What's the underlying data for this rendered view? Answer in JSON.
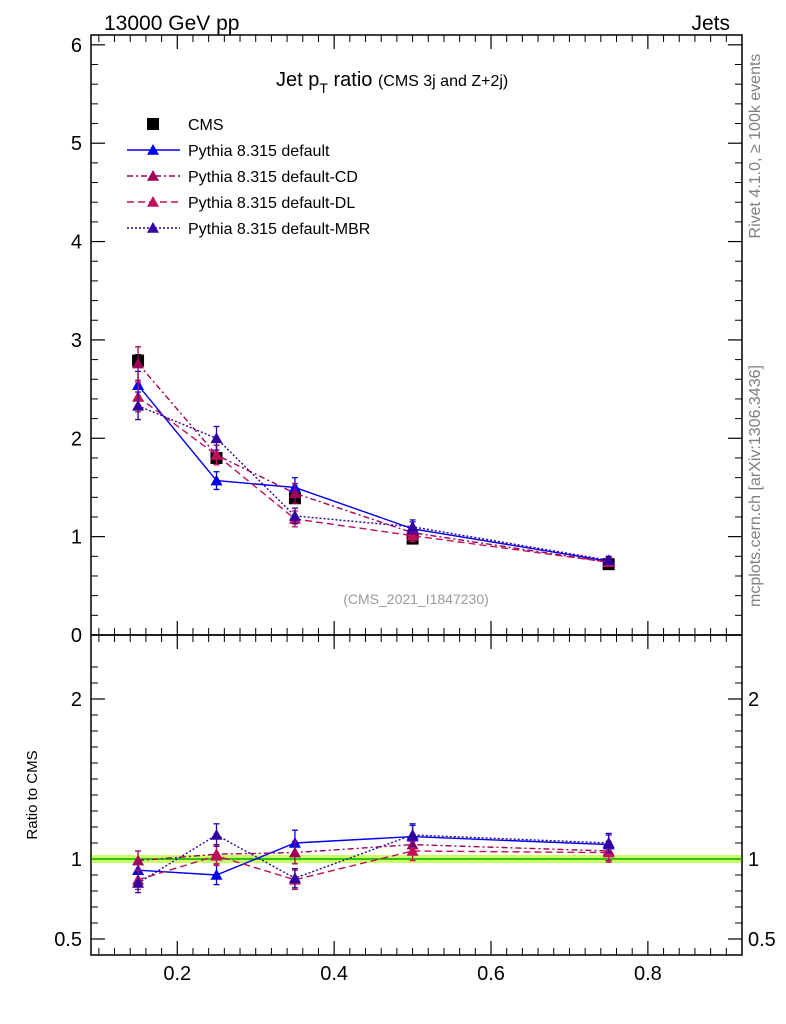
{
  "header": {
    "left": "13000 GeV pp",
    "right": "Jets"
  },
  "plot_title": {
    "main": "Jet p",
    "sub": "T",
    "rest": " ratio ",
    "small": "(CMS 3j and Z+2j)"
  },
  "side_notes": {
    "rivet": "Rivet 4.1.0, ≥ 100k events",
    "mcplots": "mcplots.cern.ch [arXiv:1306.3436]"
  },
  "analysis_ref": "(CMS_2021_I1847230)",
  "ratio_ylabel": "Ratio to CMS",
  "colors": {
    "data": "#000000",
    "default": "#0000ee",
    "cd": "#a0005a",
    "dl": "#c0105a",
    "mbr": "#3000a0",
    "band": "#ccff66",
    "refline": "#00aa00"
  },
  "chart_data": {
    "type": "line",
    "title": "Jet pT ratio (CMS 3j and Z+2j)",
    "xlabel": "",
    "ylabel": "",
    "x": [
      0.15,
      0.25,
      0.35,
      0.5,
      0.75
    ],
    "xlim": [
      0.09,
      0.92
    ],
    "ylim": [
      0,
      6.1
    ],
    "x_ticks": [
      "0.2",
      "0.4",
      "0.6",
      "0.8"
    ],
    "x_tick_values": [
      0.2,
      0.4,
      0.6,
      0.8
    ],
    "y_ticks": [
      "0",
      "1",
      "2",
      "3",
      "4",
      "5",
      "6"
    ],
    "y_tick_values": [
      0,
      1,
      2,
      3,
      4,
      5,
      6
    ],
    "legend_position": "top-left",
    "series": [
      {
        "name": "CMS",
        "key": "data",
        "style": "marker",
        "values": [
          2.79,
          1.8,
          1.39,
          0.98,
          0.72
        ],
        "errors": [
          0.06,
          0.05,
          0.05,
          0.03,
          0.02
        ]
      },
      {
        "name": "Pythia 8.315 default",
        "key": "default",
        "style": "solid",
        "values": [
          2.54,
          1.57,
          1.5,
          1.08,
          0.75
        ],
        "errors": [
          0.14,
          0.09,
          0.1,
          0.07,
          0.04
        ]
      },
      {
        "name": "Pythia 8.315 default-CD",
        "key": "cd",
        "style": "dashdot",
        "values": [
          2.76,
          1.83,
          1.44,
          1.04,
          0.74
        ],
        "errors": [
          0.17,
          0.1,
          0.1,
          0.06,
          0.04
        ]
      },
      {
        "name": "Pythia 8.315 default-DL",
        "key": "dl",
        "style": "dashed",
        "values": [
          2.42,
          1.83,
          1.18,
          1.01,
          0.74
        ],
        "errors": [
          0.15,
          0.1,
          0.08,
          0.06,
          0.04
        ]
      },
      {
        "name": "Pythia 8.315 default-MBR",
        "key": "mbr",
        "style": "dotted",
        "values": [
          2.33,
          2.0,
          1.21,
          1.1,
          0.76
        ],
        "errors": [
          0.14,
          0.12,
          0.08,
          0.07,
          0.04
        ]
      }
    ],
    "ratio": {
      "ylabel": "Ratio to CMS",
      "ylim": [
        0.4,
        2.4
      ],
      "y_ticks": [
        "0.5",
        "1",
        "2"
      ],
      "y_tick_values": [
        0.5,
        1,
        2
      ],
      "band_halfwidth": 0.025,
      "series": [
        {
          "key": "default",
          "style": "solid",
          "values": [
            0.93,
            0.9,
            1.1,
            1.14,
            1.09
          ],
          "errors": [
            0.06,
            0.06,
            0.08,
            0.07,
            0.06
          ]
        },
        {
          "key": "cd",
          "style": "dashdot",
          "values": [
            0.99,
            1.03,
            1.04,
            1.09,
            1.05
          ],
          "errors": [
            0.06,
            0.06,
            0.07,
            0.06,
            0.06
          ]
        },
        {
          "key": "dl",
          "style": "dashed",
          "values": [
            0.87,
            1.02,
            0.87,
            1.05,
            1.04
          ],
          "errors": [
            0.06,
            0.06,
            0.06,
            0.06,
            0.06
          ]
        },
        {
          "key": "mbr",
          "style": "dotted",
          "values": [
            0.85,
            1.15,
            0.88,
            1.15,
            1.1
          ],
          "errors": [
            0.06,
            0.07,
            0.06,
            0.07,
            0.06
          ]
        }
      ]
    }
  },
  "legend": [
    {
      "key": "data",
      "label": "CMS"
    },
    {
      "key": "default",
      "label": "Pythia 8.315 default"
    },
    {
      "key": "cd",
      "label": "Pythia 8.315 default-CD"
    },
    {
      "key": "dl",
      "label": "Pythia 8.315 default-DL"
    },
    {
      "key": "mbr",
      "label": "Pythia 8.315 default-MBR"
    }
  ]
}
